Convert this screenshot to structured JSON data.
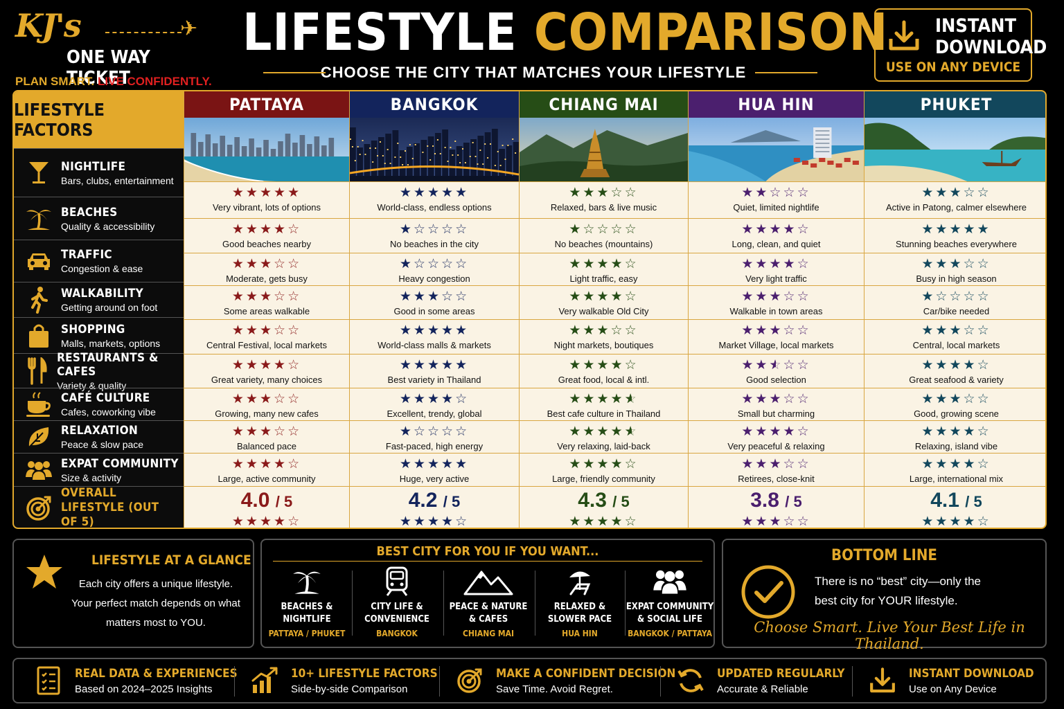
{
  "brand": {
    "name_line1": "KJ's",
    "name_line2": "ONE WAY TICKET",
    "tagline_a": "PLAN SMART.",
    "tagline_b": "LIVE CONFIDENTLY."
  },
  "header": {
    "title_a": "LIFESTYLE",
    "title_b": "COMPARISON",
    "subtitle": "CHOOSE THE CITY THAT MATCHES YOUR LIFESTYLE"
  },
  "download_box": {
    "line1": "INSTANT",
    "line2": "DOWNLOAD",
    "sub": "USE ON ANY DEVICE"
  },
  "table": {
    "factors_header": "LIFESTYLE FACTORS",
    "factors": [
      {
        "name": "NIGHTLIFE",
        "sub": "Bars, clubs, entertainment",
        "icon": "cocktail-icon"
      },
      {
        "name": "BEACHES",
        "sub": "Quality & accessibility",
        "icon": "palm-tree-icon"
      },
      {
        "name": "TRAFFIC",
        "sub": "Congestion & ease",
        "icon": "car-icon"
      },
      {
        "name": "WALKABILITY",
        "sub": "Getting around on foot",
        "icon": "walking-icon"
      },
      {
        "name": "SHOPPING",
        "sub": "Malls, markets, options",
        "icon": "shopping-bag-icon"
      },
      {
        "name": "RESTAURANTS & CAFES",
        "sub": "Variety & quality",
        "icon": "fork-knife-icon"
      },
      {
        "name": "CAFÉ CULTURE",
        "sub": "Cafes, coworking vibe",
        "icon": "coffee-cup-icon"
      },
      {
        "name": "RELAXATION",
        "sub": "Peace & slow pace",
        "icon": "leaf-icon"
      },
      {
        "name": "EXPAT COMMUNITY",
        "sub": "Size & activity",
        "icon": "people-icon"
      }
    ],
    "overall_label": "OVERALL LIFESTYLE (OUT OF 5)",
    "overall_icon": "target-icon",
    "cities": [
      {
        "name": "PATTAYA",
        "header_color": "#7a1414",
        "star_color": "#8a1a1a",
        "cells": [
          {
            "stars": 5,
            "desc": "Very vibrant, lots of options"
          },
          {
            "stars": 4,
            "desc": "Good beaches nearby"
          },
          {
            "stars": 3,
            "desc": "Moderate, gets busy"
          },
          {
            "stars": 3,
            "desc": "Some areas walkable"
          },
          {
            "stars": 3,
            "desc": "Central Festival, local markets"
          },
          {
            "stars": 4,
            "desc": "Great variety, many choices"
          },
          {
            "stars": 3,
            "desc": "Growing, many new cafes"
          },
          {
            "stars": 3,
            "desc": "Balanced pace"
          },
          {
            "stars": 4,
            "desc": "Large, active community"
          }
        ],
        "score": "4.0",
        "score_den": "/ 5",
        "score_stars": 4
      },
      {
        "name": "BANGKOK",
        "header_color": "#13245c",
        "star_color": "#13245c",
        "cells": [
          {
            "stars": 5,
            "desc": "World-class, endless options"
          },
          {
            "stars": 1,
            "desc": "No beaches in the city"
          },
          {
            "stars": 1,
            "desc": "Heavy congestion"
          },
          {
            "stars": 3,
            "desc": "Good in some areas"
          },
          {
            "stars": 5,
            "desc": "World-class malls & markets"
          },
          {
            "stars": 5,
            "desc": "Best variety in Thailand"
          },
          {
            "stars": 4,
            "desc": "Excellent, trendy, global"
          },
          {
            "stars": 1,
            "desc": "Fast-paced, high energy"
          },
          {
            "stars": 5,
            "desc": "Huge, very active"
          }
        ],
        "score": "4.2",
        "score_den": "/ 5",
        "score_stars": 4
      },
      {
        "name": "CHIANG MAI",
        "header_color": "#264d16",
        "star_color": "#264d16",
        "cells": [
          {
            "stars": 3,
            "desc": "Relaxed, bars & live music"
          },
          {
            "stars": 1,
            "desc": "No beaches (mountains)"
          },
          {
            "stars": 4,
            "desc": "Light traffic, easy"
          },
          {
            "stars": 4,
            "desc": "Very walkable Old City"
          },
          {
            "stars": 3,
            "desc": "Night markets, boutiques"
          },
          {
            "stars": 4,
            "desc": "Great food, local & intl."
          },
          {
            "stars": 4.5,
            "desc": "Best cafe culture in Thailand"
          },
          {
            "stars": 4.5,
            "desc": "Very relaxing, laid-back"
          },
          {
            "stars": 4,
            "desc": "Large, friendly community"
          }
        ],
        "score": "4.3",
        "score_den": "/ 5",
        "score_stars": 4
      },
      {
        "name": "HUA HIN",
        "header_color": "#4b1f6e",
        "star_color": "#4b1f6e",
        "cells": [
          {
            "stars": 2,
            "desc": "Quiet, limited nightlife"
          },
          {
            "stars": 4,
            "desc": "Long, clean, and quiet"
          },
          {
            "stars": 4,
            "desc": "Very light traffic"
          },
          {
            "stars": 3,
            "desc": "Walkable in town areas"
          },
          {
            "stars": 3,
            "desc": "Market Village, local markets"
          },
          {
            "stars": 2.5,
            "desc": "Good selection"
          },
          {
            "stars": 3,
            "desc": "Small but charming"
          },
          {
            "stars": 4,
            "desc": "Very peaceful & relaxing"
          },
          {
            "stars": 3,
            "desc": "Retirees, close-knit"
          }
        ],
        "score": "3.8",
        "score_den": "/ 5",
        "score_stars": 3
      },
      {
        "name": "PHUKET",
        "header_color": "#12475c",
        "star_color": "#12475c",
        "cells": [
          {
            "stars": 3,
            "desc": "Active in Patong, calmer elsewhere"
          },
          {
            "stars": 5,
            "desc": "Stunning beaches everywhere"
          },
          {
            "stars": 3,
            "desc": "Busy in high season"
          },
          {
            "stars": 1,
            "desc": "Car/bike needed"
          },
          {
            "stars": 3,
            "desc": "Central, local markets"
          },
          {
            "stars": 4,
            "desc": "Great seafood & variety"
          },
          {
            "stars": 3,
            "desc": "Good, growing scene"
          },
          {
            "stars": 4,
            "desc": "Relaxing, island vibe"
          },
          {
            "stars": 4,
            "desc": "Large, international mix"
          }
        ],
        "score": "4.1",
        "score_den": "/ 5",
        "score_stars": 4
      }
    ]
  },
  "glance": {
    "title": "LIFESTYLE AT A GLANCE",
    "text_1": "Each city offers a unique lifestyle.",
    "text_2": "Your perfect match depends on what",
    "text_3": "matters most to YOU."
  },
  "best_city": {
    "title": "BEST CITY FOR YOU IF YOU WANT...",
    "items": [
      {
        "l1": "BEACHES &",
        "l2": "NIGHTLIFE",
        "city": "PATTAYA / PHUKET",
        "icon": "palm-tree-icon"
      },
      {
        "l1": "CITY LIFE &",
        "l2": "CONVENIENCE",
        "city": "BANGKOK",
        "icon": "train-icon"
      },
      {
        "l1": "PEACE & NATURE",
        "l2": "& CAFES",
        "city": "CHIANG MAI",
        "icon": "mountain-icon"
      },
      {
        "l1": "RELAXED &",
        "l2": "SLOWER PACE",
        "city": "HUA HIN",
        "icon": "beach-chair-icon"
      },
      {
        "l1": "EXPAT COMMUNITY",
        "l2": "& SOCIAL LIFE",
        "city": "BANGKOK / PATTAYA",
        "icon": "people-icon"
      }
    ]
  },
  "bottom_line": {
    "title": "BOTTOM LINE",
    "text_1": "There is no “best” city—only the",
    "text_2": "best city for YOUR lifestyle.",
    "slogan": "Choose Smart. Live Your Best Life in Thailand."
  },
  "footer": [
    {
      "title": "REAL DATA & EXPERIENCES",
      "sub": "Based on 2024–2025 Insights",
      "icon": "checklist-icon"
    },
    {
      "title": "10+ LIFESTYLE FACTORS",
      "sub": "Side-by-side Comparison",
      "icon": "growth-chart-icon"
    },
    {
      "title": "MAKE A CONFIDENT DECISION",
      "sub": "Save Time. Avoid Regret.",
      "icon": "target-icon"
    },
    {
      "title": "UPDATED REGULARLY",
      "sub": "Accurate & Reliable",
      "icon": "refresh-icon"
    },
    {
      "title": "INSTANT DOWNLOAD",
      "sub": "Use on Any Device",
      "icon": "download-icon"
    }
  ]
}
